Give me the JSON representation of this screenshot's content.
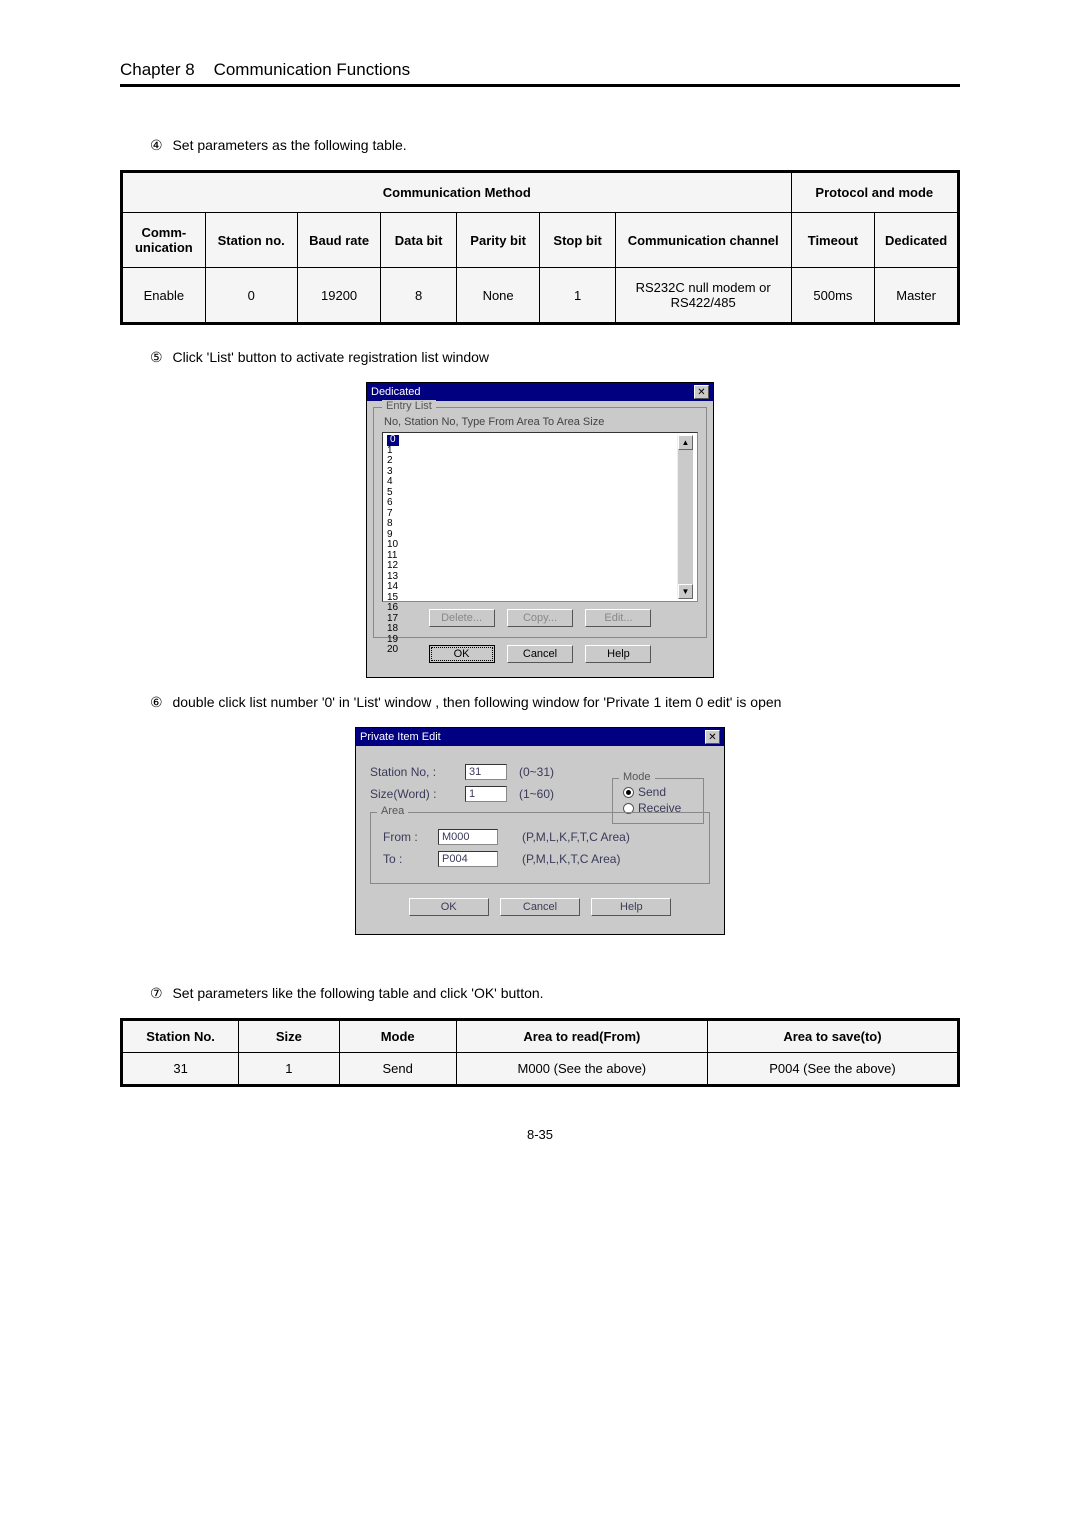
{
  "header": {
    "chapter": "Chapter 8",
    "title": "Communication Functions"
  },
  "steps": {
    "s4": "Set parameters as the following table.",
    "s5": "Click 'List' button to activate registration list window",
    "s6": "double click list number '0' in 'List' window , then following window for 'Private 1 item 0 edit' is open",
    "s7": "Set parameters like the following table and click 'OK' button."
  },
  "circled": {
    "n4": "④",
    "n5": "⑤",
    "n6": "⑥",
    "n7": "⑦"
  },
  "table1": {
    "head_comm_method": "Communication Method",
    "head_protocol": "Protocol and mode",
    "cols": {
      "communication": "Comm-unication",
      "station_no": "Station no.",
      "baud": "Baud rate",
      "data_bit": "Data bit",
      "parity": "Parity bit",
      "stop_bit": "Stop bit",
      "channel": "Communication channel",
      "timeout": "Timeout",
      "dedicated": "Dedicated"
    },
    "row": {
      "communication": "Enable",
      "station_no": "0",
      "baud": "19200",
      "data_bit": "8",
      "parity": "None",
      "stop_bit": "1",
      "channel": "RS232C null modem or RS422/485",
      "timeout": "500ms",
      "dedicated": "Master"
    }
  },
  "dlg1": {
    "title": "Dedicated",
    "group": "Entry List",
    "list_header": "No,  Station No,  Type     From Area   To Area     Size",
    "rows": [
      "0",
      "1",
      "2",
      "3",
      "4",
      "5",
      "6",
      "7",
      "8",
      "9",
      "10",
      "11",
      "12",
      "13",
      "14",
      "15",
      "16",
      "17",
      "18",
      "19",
      "20"
    ],
    "selected": "0",
    "btn_delete": "Delete...",
    "btn_copy": "Copy...",
    "btn_edit": "Edit...",
    "btn_ok": "OK",
    "btn_cancel": "Cancel",
    "btn_help": "Help"
  },
  "dlg2": {
    "title": "Private Item Edit",
    "lbl_station": "Station No, :",
    "val_station": "31",
    "rng_station": "(0~31)",
    "lbl_size": "Size(Word) :",
    "val_size": "1",
    "rng_size": "(1~60)",
    "mode_title": "Mode",
    "mode_send": "Send",
    "mode_receive": "Receive",
    "area_title": "Area",
    "lbl_from": "From :",
    "val_from": "M000",
    "hint_from": "(P,M,L,K,F,T,C Area)",
    "lbl_to": "To :",
    "val_to": "P004",
    "hint_to": "(P,M,L,K,T,C Area)",
    "btn_ok": "OK",
    "btn_cancel": "Cancel",
    "btn_help": "Help"
  },
  "table2": {
    "cols": {
      "station": "Station No.",
      "size": "Size",
      "mode": "Mode",
      "from": "Area to read(From)",
      "to": "Area to save(to)"
    },
    "row": {
      "station": "31",
      "size": "1",
      "mode": "Send",
      "from": "M000 (See the above)",
      "to": "P004 (See the above)"
    }
  },
  "page_number": "8-35"
}
